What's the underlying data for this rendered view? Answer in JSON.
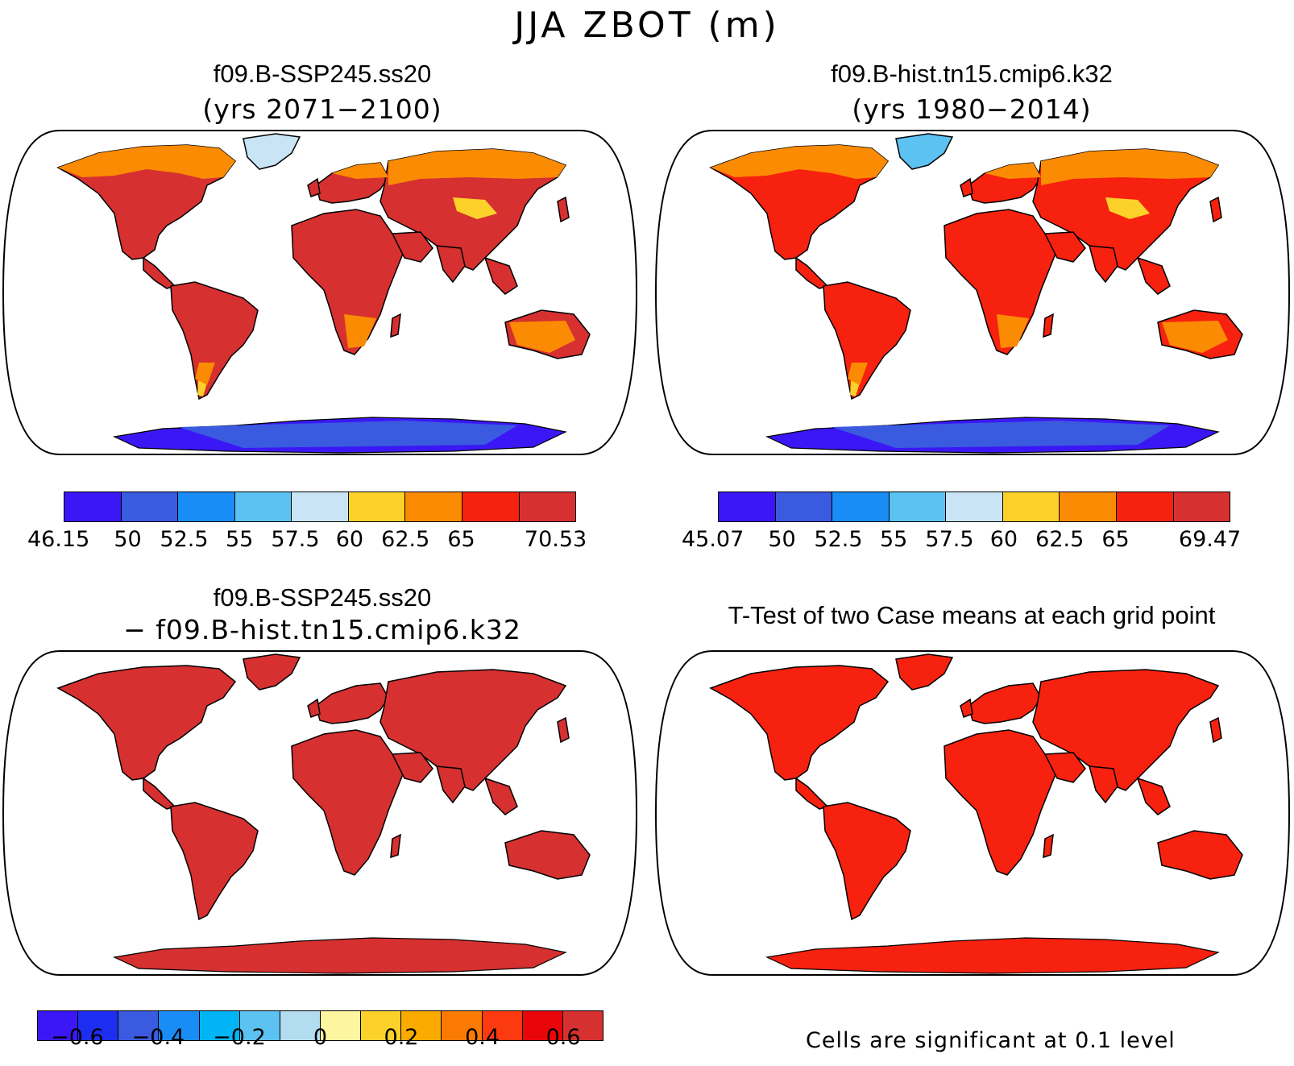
{
  "title": "JJA ZBOT (m)",
  "panels": {
    "case": {
      "title": "f09.B-SSP245.ss20",
      "subtitle": "(yrs 2071−2100)"
    },
    "control": {
      "title": "f09.B-hist.tn15.cmip6.k32",
      "subtitle": "(yrs 1980−2014)"
    },
    "diff": {
      "title": "f09.B-SSP245.ss20",
      "subtitle": "− f09.B-hist.tn15.cmip6.k32"
    },
    "ttest": {
      "title": "T-Test of two Case means at each grid point",
      "note": "Cells are significant at 0.1 level"
    }
  },
  "colorbars": {
    "case": {
      "colors": [
        "#3b17f5",
        "#3a5ae0",
        "#1a8cf5",
        "#5cc2f2",
        "#c8e4f5",
        "#fcd22a",
        "#fb8b03",
        "#f7210f",
        "#d63030"
      ],
      "labels": [
        "46.15",
        "50",
        "52.5",
        "55",
        "57.5",
        "60",
        "62.5",
        "65",
        "70.53"
      ]
    },
    "control": {
      "colors": [
        "#3b17f5",
        "#3a5ae0",
        "#1a8cf5",
        "#5cc2f2",
        "#c8e4f5",
        "#fcd22a",
        "#fb8b03",
        "#f7210f",
        "#d63030"
      ],
      "labels": [
        "45.07",
        "50",
        "52.5",
        "55",
        "57.5",
        "60",
        "62.5",
        "65",
        "69.47"
      ]
    },
    "diff": {
      "colors": [
        "#3b17f5",
        "#1e2ef0",
        "#3a5ae0",
        "#1a8cf5",
        "#00b4f5",
        "#5cc2f2",
        "#b4dcf0",
        "#fdf5a0",
        "#fcd22a",
        "#fbab00",
        "#fb7a03",
        "#fb3a0f",
        "#e8060a",
        "#d63030"
      ],
      "labels": [
        "−0.6",
        "−0.4",
        "−0.2",
        "0",
        "0.2",
        "0.4",
        "0.6"
      ]
    }
  },
  "maps": {
    "case": {
      "land": "#d63030",
      "mid_lat": "#f7210f",
      "high_lat": "#fb8b03",
      "arctic": "#c8e4f5",
      "antarctic": "#3b17f5",
      "highland": "#fcd22a"
    },
    "control": {
      "land": "#f7210f",
      "mid_lat": "#f7210f",
      "high_lat": "#fb8b03",
      "arctic": "#5cc2f2",
      "antarctic": "#3b17f5",
      "highland": "#fcd22a"
    },
    "diff": {
      "land": "#d63030",
      "antarctic": "#d63030"
    },
    "ttest": {
      "land": "#f7210f",
      "antarctic": "#f7210f"
    }
  }
}
